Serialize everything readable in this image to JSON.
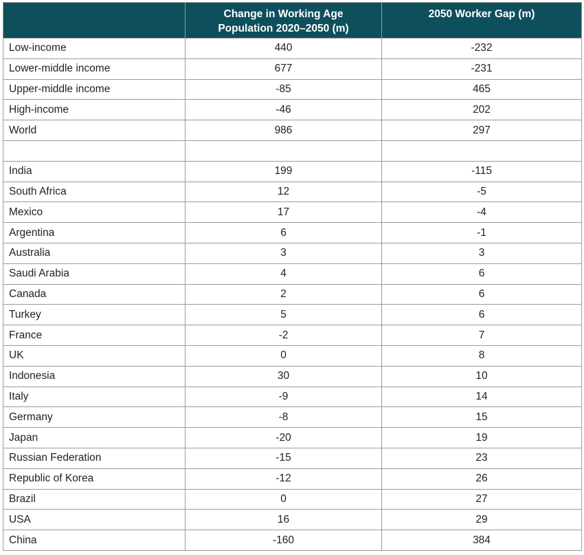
{
  "table": {
    "headers": [
      "",
      "Change in Working Age\nPopulation 2020–2050 (m)",
      "2050 Worker Gap (m)"
    ],
    "rows": [
      {
        "name": "Low-income",
        "change": "440",
        "gap": "-232"
      },
      {
        "name": "Lower-middle income",
        "change": "677",
        "gap": "-231"
      },
      {
        "name": "Upper-middle income",
        "change": "-85",
        "gap": "465"
      },
      {
        "name": "High-income",
        "change": "-46",
        "gap": "202"
      },
      {
        "name": "World",
        "change": "986",
        "gap": "297"
      },
      {
        "name": "",
        "change": "",
        "gap": ""
      },
      {
        "name": "India",
        "change": "199",
        "gap": "-115"
      },
      {
        "name": "South Africa",
        "change": "12",
        "gap": "-5"
      },
      {
        "name": "Mexico",
        "change": "17",
        "gap": "-4"
      },
      {
        "name": "Argentina",
        "change": "6",
        "gap": "-1"
      },
      {
        "name": "Australia",
        "change": "3",
        "gap": "3"
      },
      {
        "name": "Saudi Arabia",
        "change": "4",
        "gap": "6"
      },
      {
        "name": "Canada",
        "change": "2",
        "gap": "6"
      },
      {
        "name": "Turkey",
        "change": "5",
        "gap": "6"
      },
      {
        "name": "France",
        "change": "-2",
        "gap": "7"
      },
      {
        "name": "UK",
        "change": "0",
        "gap": "8"
      },
      {
        "name": "Indonesia",
        "change": "30",
        "gap": "10"
      },
      {
        "name": "Italy",
        "change": "-9",
        "gap": "14"
      },
      {
        "name": "Germany",
        "change": "-8",
        "gap": "15"
      },
      {
        "name": "Japan",
        "change": "-20",
        "gap": "19"
      },
      {
        "name": "Russian Federation",
        "change": "-15",
        "gap": "23"
      },
      {
        "name": "Republic of Korea",
        "change": "-12",
        "gap": "26"
      },
      {
        "name": "Brazil",
        "change": "0",
        "gap": "27"
      },
      {
        "name": "USA",
        "change": "16",
        "gap": "29"
      },
      {
        "name": "China",
        "change": "-160",
        "gap": "384"
      }
    ]
  }
}
